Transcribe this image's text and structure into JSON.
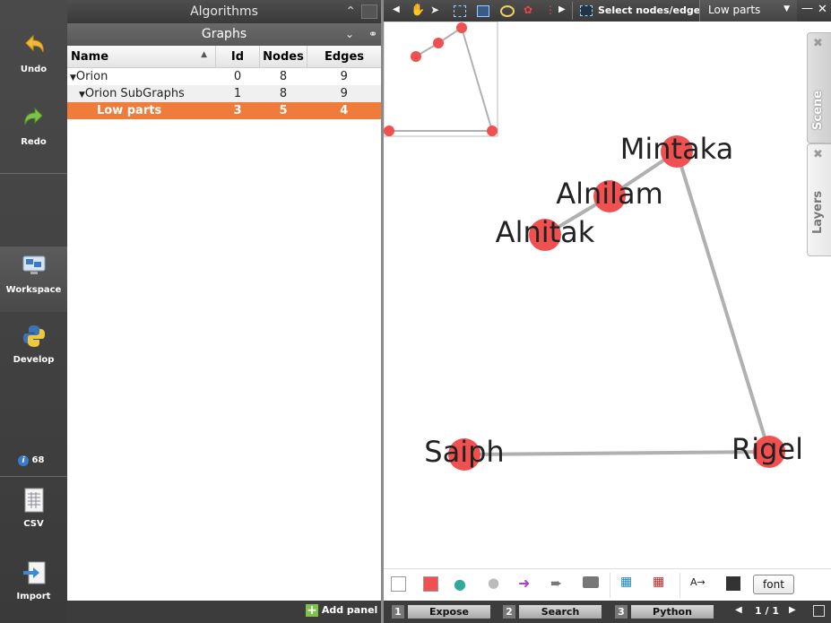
{
  "leftbar": {
    "undo": "Undo",
    "redo": "Redo",
    "workspace": "Workspace",
    "develop": "Develop",
    "notifications": "68",
    "csv": "CSV",
    "import": "Import"
  },
  "panels": {
    "algorithms_title": "Algorithms",
    "graphs_title": "Graphs",
    "add_panel": "Add panel"
  },
  "table": {
    "headers": [
      "Name",
      "Id",
      "Nodes",
      "Edges"
    ],
    "rows": [
      {
        "name": "Orion",
        "id": "0",
        "nodes": "8",
        "edges": "9"
      },
      {
        "name": "Orion SubGraphs",
        "id": "1",
        "nodes": "8",
        "edges": "9"
      },
      {
        "name": "Low parts",
        "id": "3",
        "nodes": "5",
        "edges": "4"
      }
    ]
  },
  "toolbar": {
    "select_mode": "Select nodes/edges in",
    "selected_graph": "Low parts"
  },
  "sidetabs": {
    "scene": "Scene",
    "layers": "Layers"
  },
  "graph": {
    "nodes": [
      {
        "label": "Mintaka"
      },
      {
        "label": "Alnilam"
      },
      {
        "label": "Alnitak"
      },
      {
        "label": "Saiph"
      },
      {
        "label": "Rigel"
      }
    ],
    "node_color": "#f05050",
    "edge_color": "#b0b0b0"
  },
  "bottom": {
    "font_button": "font"
  },
  "status": {
    "tabs": [
      {
        "num": "1",
        "label": "Expose"
      },
      {
        "num": "2",
        "label": "Search"
      },
      {
        "num": "3",
        "label": "Python"
      }
    ],
    "page": "1 / 1"
  }
}
